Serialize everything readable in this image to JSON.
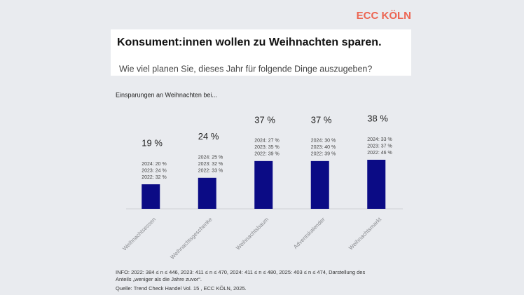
{
  "brand": "ECC KÖLN",
  "chart_data": {
    "type": "bar",
    "title": "Konsument:innen wollen zu Weihnachten sparen.",
    "subtitle": "Wie viel planen Sie, dieses Jahr für folgende Dinge auszugeben?",
    "chart_label": "Einsparungen an Weihnachten bei...",
    "categories": [
      "Weihnachtsessen",
      "Weihnachtsgeschenke",
      "Weihnachtsbaum",
      "Adventskalender",
      "Weihnachtsmarkt"
    ],
    "values": [
      19,
      24,
      37,
      37,
      38
    ],
    "value_labels": [
      "19 %",
      "24 %",
      "37 %",
      "37 %",
      "38 %"
    ],
    "annotations": [
      [
        "2024: 20 %",
        "2023: 24 %",
        "2022: 32 %"
      ],
      [
        "2024: 25 %",
        "2023: 32 %",
        "2022: 33 %"
      ],
      [
        "2024: 27 %",
        "2023: 35 %",
        "2022: 39 %"
      ],
      [
        "2024: 30 %",
        "2023: 40 %",
        "2022: 39 %"
      ],
      [
        "2024: 33 %",
        "2023: 37 %",
        "2022: 46 %"
      ]
    ],
    "color": "#0b0b85",
    "footnotes": [
      "INFO: 2022: 384 ≤ n ≤ 446, 2023: 411 ≤ n ≤ 470, 2024: 411 ≤ n ≤ 480, 2025: 403 ≤ n ≤ 474, Darstellung des",
      "Anteils „weniger als die Jahre zuvor“.",
      "Quelle: Trend Check Handel Vol. 15 , ECC KÖLN, 2025."
    ]
  }
}
